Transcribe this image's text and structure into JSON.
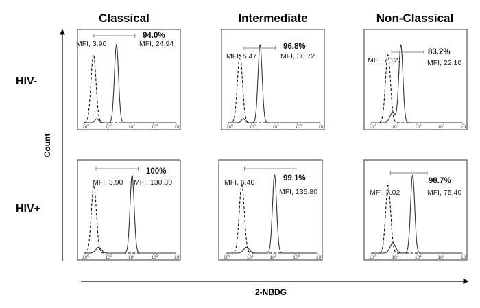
{
  "column_titles": [
    "Classical",
    "Intermediate",
    "Non-Classical"
  ],
  "row_labels": [
    "HIV-",
    "HIV+"
  ],
  "y_axis_label": "Count",
  "x_axis_label": "2-NBDG",
  "chart_data": {
    "type": "histogram-grid",
    "xscale": "log",
    "xlim": [
      1,
      10000
    ],
    "x_tick_labels": [
      "10",
      "10",
      "10",
      "10",
      "10"
    ],
    "x_tick_exponents": [
      "0",
      "1",
      "2",
      "3",
      "4"
    ],
    "series_styles": {
      "control": "dashed",
      "stained": "solid"
    },
    "panels": [
      {
        "row": "HIV-",
        "column": "Classical",
        "control_mfi_label": "MFI, 3.90",
        "stained_mfi_label": "MFI, 24.94",
        "percent_label": "94.0%",
        "control_mfi": 3.9,
        "stained_mfi": 24.94,
        "percent_positive": 94.0,
        "control_peak": 2.5,
        "stained_peak": 24.94,
        "gate": [
          2.6,
          160
        ]
      },
      {
        "row": "HIV-",
        "column": "Intermediate",
        "control_mfi_label": "MFI, 5.47",
        "stained_mfi_label": "MFI, 30.72",
        "percent_label": "96.8%",
        "control_mfi": 5.47,
        "stained_mfi": 30.72,
        "percent_positive": 96.8,
        "control_peak": 3.2,
        "stained_peak": 24.0,
        "gate": [
          4.5,
          110
        ]
      },
      {
        "row": "HIV-",
        "column": "Non-Classical",
        "control_mfi_label": "MFI, 7.12",
        "stained_mfi_label": "MFI, 22.10",
        "percent_label": "83.2%",
        "control_mfi": 7.12,
        "stained_mfi": 22.1,
        "percent_positive": 83.2,
        "control_peak": 5.5,
        "stained_peak": 20.0,
        "gate": [
          8.0,
          200
        ]
      },
      {
        "row": "HIV+",
        "column": "Classical",
        "control_mfi_label": "MFI, 3.90",
        "stained_mfi_label": "MFI, 130.30",
        "percent_label": "100%",
        "control_mfi": 3.9,
        "stained_mfi": 130.3,
        "percent_positive": 100,
        "control_peak": 2.6,
        "stained_peak": 120.0,
        "gate": [
          3.2,
          220
        ]
      },
      {
        "row": "HIV+",
        "column": "Intermediate",
        "control_mfi_label": "MFI, 6.40",
        "stained_mfi_label": "MFI, 135.80",
        "percent_label": "99.1%",
        "control_mfi": 6.4,
        "stained_mfi": 135.8,
        "percent_positive": 99.1,
        "control_peak": 5.0,
        "stained_peak": 130.0,
        "gate": [
          6.5,
          1100
        ]
      },
      {
        "row": "HIV+",
        "column": "Non-Classical",
        "control_mfi_label": "MFI, 7.02",
        "stained_mfi_label": "MFI, 75.40",
        "percent_label": "98.7%",
        "control_mfi": 7.02,
        "stained_mfi": 75.4,
        "percent_positive": 98.7,
        "control_peak": 5.6,
        "stained_peak": 65.0,
        "gate": [
          7.0,
          280
        ]
      }
    ]
  }
}
